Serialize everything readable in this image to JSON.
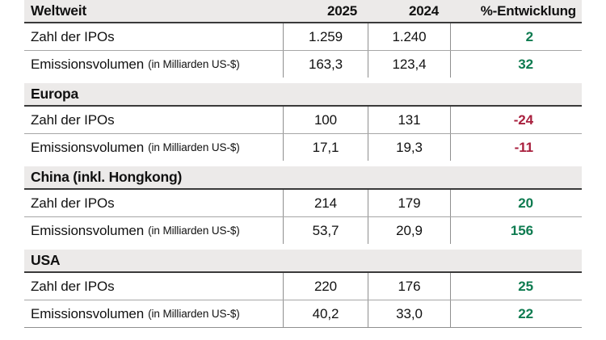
{
  "chart_data": {
    "type": "table",
    "columns": {
      "y2025": "2025",
      "y2024": "2024",
      "pct": "%-Entwicklung"
    },
    "colors": {
      "positive": "#0e7b50",
      "negative": "#a81f3d"
    },
    "sections": [
      {
        "title": "Weltweit",
        "rows": [
          {
            "label": "Zahl der IPOs",
            "note": "",
            "y2025": "1.259",
            "y2024": "1.240",
            "pct": "2",
            "trend": "positive"
          },
          {
            "label": "Emissionsvolumen",
            "note": "(in Milliarden US-$)",
            "y2025": "163,3",
            "y2024": "123,4",
            "pct": "32",
            "trend": "positive"
          }
        ]
      },
      {
        "title": "Europa",
        "rows": [
          {
            "label": "Zahl der IPOs",
            "note": "",
            "y2025": "100",
            "y2024": "131",
            "pct": "-24",
            "trend": "negative"
          },
          {
            "label": "Emissionsvolumen",
            "note": "(in Milliarden US-$)",
            "y2025": "17,1",
            "y2024": "19,3",
            "pct": "-11",
            "trend": "negative"
          }
        ]
      },
      {
        "title": "China (inkl. Hongkong)",
        "rows": [
          {
            "label": "Zahl der IPOs",
            "note": "",
            "y2025": "214",
            "y2024": "179",
            "pct": "20",
            "trend": "positive"
          },
          {
            "label": "Emissionsvolumen",
            "note": "(in Milliarden US-$)",
            "y2025": "53,7",
            "y2024": "20,9",
            "pct": "156",
            "trend": "positive"
          }
        ]
      },
      {
        "title": "USA",
        "rows": [
          {
            "label": "Zahl der IPOs",
            "note": "",
            "y2025": "220",
            "y2024": "176",
            "pct": "25",
            "trend": "positive"
          },
          {
            "label": "Emissionsvolumen",
            "note": "(in Milliarden US-$)",
            "y2025": "40,2",
            "y2024": "33,0",
            "pct": "22",
            "trend": "positive"
          }
        ]
      }
    ]
  }
}
